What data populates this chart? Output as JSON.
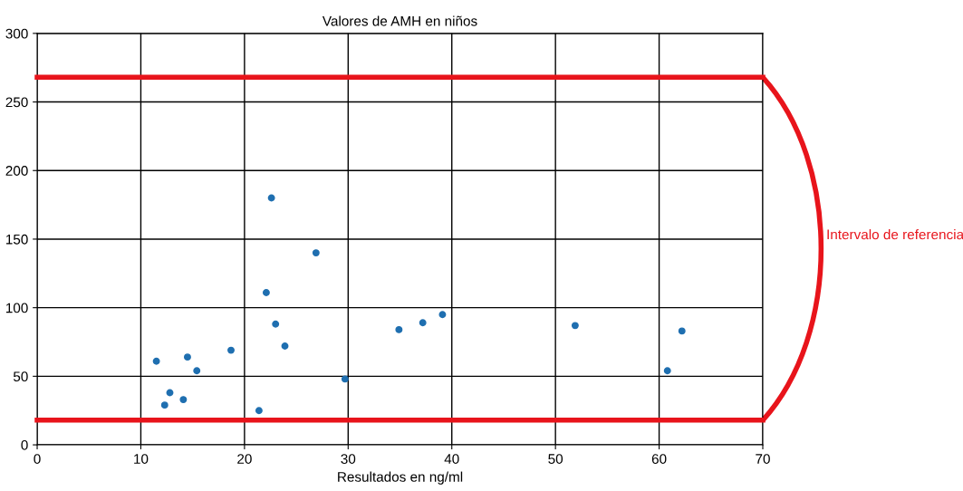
{
  "chart_data": {
    "type": "scatter",
    "title": "Valores de AMH en niños",
    "xlabel": "Resultados en ng/ml",
    "x": [
      11.5,
      12.3,
      12.8,
      14.1,
      14.5,
      15.4,
      18.7,
      21.4,
      22.1,
      22.6,
      23.0,
      23.9,
      26.9,
      29.7,
      34.9,
      37.2,
      39.1,
      51.9,
      60.8,
      62.2
    ],
    "series": [
      {
        "color": "#1f6fb0",
        "values": [
          61,
          29,
          38,
          33,
          64,
          54,
          69,
          25,
          111,
          180,
          88,
          72,
          140,
          48,
          84,
          89,
          95,
          87,
          54,
          83
        ]
      }
    ],
    "xlim": [
      0,
      70
    ],
    "xticks": [
      0,
      10,
      20,
      30,
      40,
      50,
      60,
      70
    ],
    "ylim": [
      0,
      300
    ],
    "yticks": [
      0,
      50,
      100,
      150,
      200,
      250,
      300
    ],
    "grid": true,
    "marker": "circle",
    "ref_lines": [
      {
        "axis": "y",
        "value": 268,
        "color": "#e8141b"
      },
      {
        "axis": "y",
        "value": 18,
        "color": "#e8141b"
      }
    ],
    "annotations": [
      "Intervalo de referencia"
    ]
  }
}
